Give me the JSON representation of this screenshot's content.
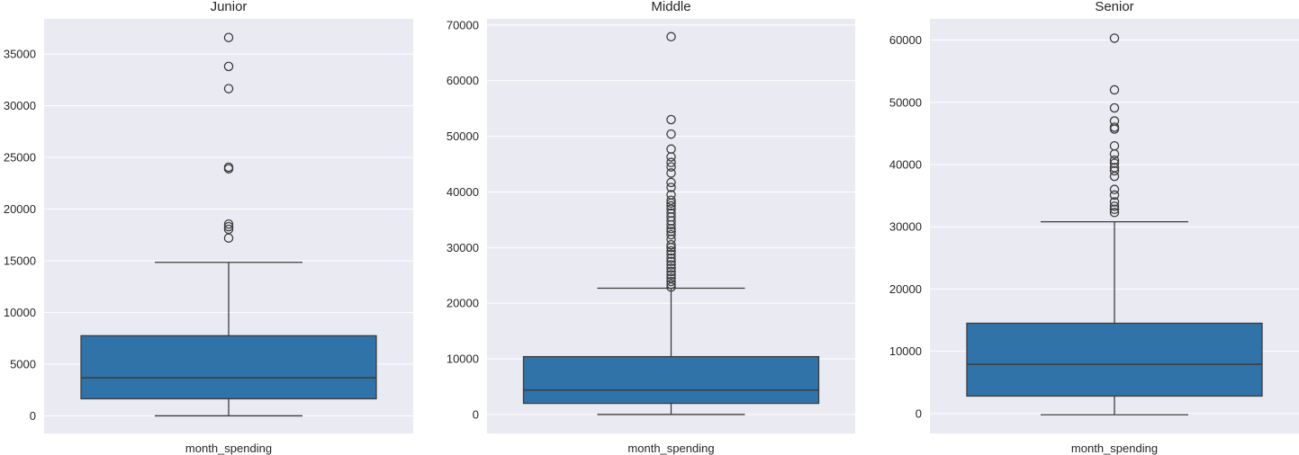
{
  "chart_data": [
    {
      "type": "boxplot",
      "title": "Junior",
      "xlabel": "month_spending",
      "ylabel": "",
      "ylim": [
        -1700,
        38400
      ],
      "yticks": [
        0,
        5000,
        10000,
        15000,
        20000,
        25000,
        30000,
        35000
      ],
      "grid": true,
      "color": "#2f73a8",
      "box": {
        "whisker_low": 0,
        "q1": 1650,
        "median": 3680,
        "q3": 7750,
        "whisker_high": 14850
      },
      "outliers": [
        17200,
        18050,
        18300,
        18550,
        23900,
        24050,
        31650,
        33800,
        36600
      ]
    },
    {
      "type": "boxplot",
      "title": "Middle",
      "xlabel": "month_spending",
      "ylabel": "",
      "ylim": [
        -3400,
        71100
      ],
      "yticks": [
        0,
        10000,
        20000,
        30000,
        40000,
        50000,
        60000,
        70000
      ],
      "grid": true,
      "color": "#2f73a8",
      "box": {
        "whisker_low": 0,
        "q1": 2000,
        "median": 4400,
        "q3": 10400,
        "whisker_high": 22700
      },
      "outliers": [
        22900,
        23400,
        23900,
        24500,
        25100,
        25700,
        26300,
        26900,
        27500,
        28100,
        28800,
        29400,
        30000,
        30500,
        31500,
        32300,
        32900,
        33400,
        34100,
        34800,
        35500,
        36200,
        36900,
        37500,
        38000,
        38500,
        39500,
        40800,
        41700,
        43400,
        44500,
        45300,
        46300,
        47700,
        50400,
        53000,
        67900
      ]
    },
    {
      "type": "boxplot",
      "title": "Senior",
      "xlabel": "month_spending",
      "ylabel": "",
      "ylim": [
        -3200,
        63400
      ],
      "yticks": [
        0,
        10000,
        20000,
        30000,
        40000,
        50000,
        60000
      ],
      "grid": true,
      "color": "#2f73a8",
      "box": {
        "whisker_low": -200,
        "q1": 2800,
        "median": 7900,
        "q3": 14500,
        "whisker_high": 30800
      },
      "outliers": [
        32300,
        32800,
        33300,
        34000,
        35100,
        36000,
        38100,
        39000,
        39500,
        40200,
        40700,
        41700,
        43000,
        45700,
        46000,
        47000,
        49100,
        52000,
        60300
      ]
    }
  ]
}
